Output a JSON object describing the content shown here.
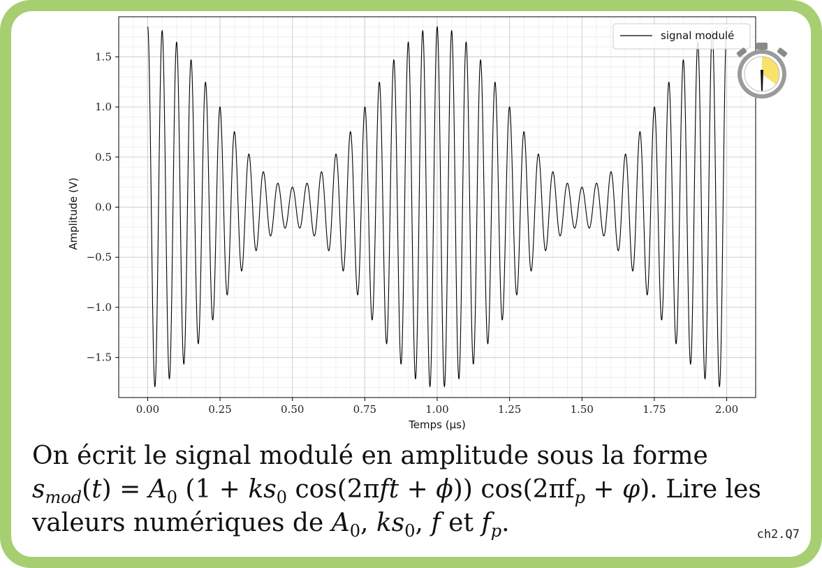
{
  "chart_data": {
    "type": "line",
    "title": "",
    "xlabel": "Temps (μs)",
    "ylabel": "Amplitude (V)",
    "xlim": [
      -0.1,
      2.1
    ],
    "ylim": [
      -1.9,
      1.9
    ],
    "xticks": [
      "0.00",
      "0.25",
      "0.50",
      "0.75",
      "1.00",
      "1.25",
      "1.50",
      "1.75",
      "2.00"
    ],
    "yticks": [
      "−1.5",
      "−1.0",
      "−0.5",
      "0.0",
      "0.5",
      "1.0",
      "1.5"
    ],
    "grid": true,
    "legend_position": "top-right",
    "series": [
      {
        "name": "signal modulé",
        "color": "#000000",
        "model": {
          "A0": 1.0,
          "k_s0": 0.8,
          "f_MHz": 1.0,
          "fp_MHz": 20.0
        },
        "x_range": [
          0,
          2
        ]
      }
    ]
  },
  "question": {
    "line1": "On écrit le signal modulé en amplitude sous la forme",
    "formula_tail": "cos(2πf",
    "line2_end": "Lire les",
    "line3": "valeurs numériques de"
  },
  "question_id": "ch2.Q7",
  "icons": {
    "timer": "stopwatch-icon"
  }
}
